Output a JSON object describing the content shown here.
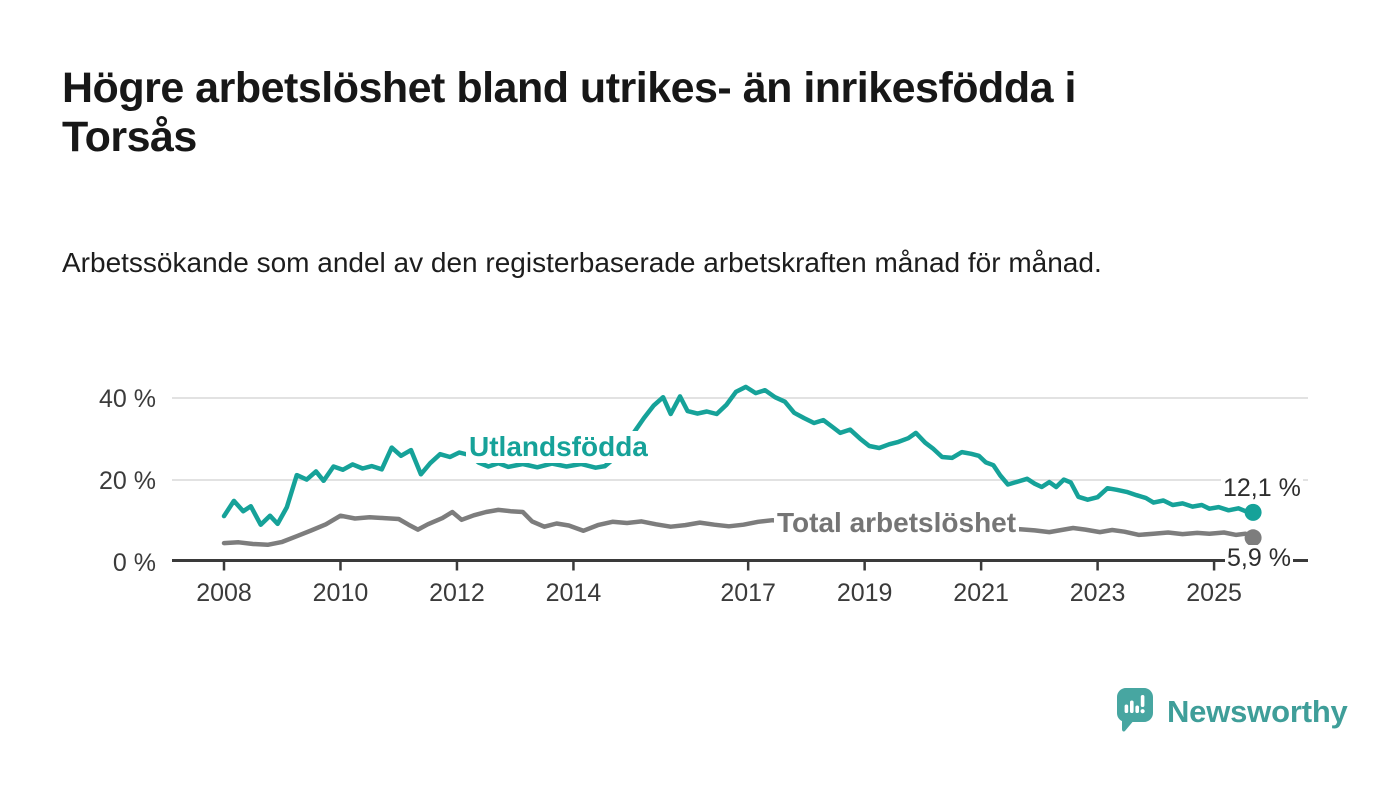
{
  "header": {
    "title_line1": "Högre arbetslöshet bland utrikes- än inrikesfödda i",
    "title_line2": "Torsås",
    "subtitle": "Arbetssökande som andel av den registerbaserade arbetskraften månad för månad."
  },
  "footer": {
    "brand": "Newsworthy"
  },
  "colors": {
    "accent_teal": "#16a299",
    "line_gray": "#7d7d7d",
    "axis_text": "#3b3b3b",
    "gridline": "#d9d9d9",
    "axis_line": "#3a3a3a",
    "logo_teal": "#47a6a1",
    "logo_text_teal": "#3f9e99"
  },
  "chart_data": {
    "type": "line",
    "title": "",
    "xlabel": "",
    "ylabel": "",
    "grid": "horizontal",
    "legend": "inline-labels",
    "xlim": [
      2007.1,
      2026.6
    ],
    "ylim": [
      0,
      44
    ],
    "y_ticks": [
      0,
      20,
      40
    ],
    "y_tick_suffix": " %",
    "x_ticks": [
      2008,
      2010,
      2012,
      2014,
      2017,
      2019,
      2021,
      2023,
      2025
    ],
    "series": [
      {
        "id": "utlandsfodda",
        "name": "Utlandsfödda",
        "color": "#16a299",
        "end_label": "12,1 %",
        "end_value": 12.1,
        "points": [
          [
            2008.0,
            11.2
          ],
          [
            2008.17,
            14.9
          ],
          [
            2008.33,
            12.4
          ],
          [
            2008.46,
            13.6
          ],
          [
            2008.63,
            9.1
          ],
          [
            2008.79,
            11.3
          ],
          [
            2008.92,
            9.3
          ],
          [
            2009.08,
            13.4
          ],
          [
            2009.25,
            21.2
          ],
          [
            2009.42,
            20.1
          ],
          [
            2009.58,
            22.1
          ],
          [
            2009.71,
            19.8
          ],
          [
            2009.88,
            23.3
          ],
          [
            2010.04,
            22.5
          ],
          [
            2010.21,
            23.8
          ],
          [
            2010.38,
            22.8
          ],
          [
            2010.54,
            23.4
          ],
          [
            2010.71,
            22.6
          ],
          [
            2010.88,
            27.9
          ],
          [
            2011.04,
            25.9
          ],
          [
            2011.21,
            27.3
          ],
          [
            2011.38,
            21.4
          ],
          [
            2011.54,
            24.1
          ],
          [
            2011.71,
            26.3
          ],
          [
            2011.88,
            25.6
          ],
          [
            2012.04,
            26.7
          ],
          [
            2012.21,
            26.1
          ],
          [
            2012.38,
            24.2
          ],
          [
            2012.54,
            23.3
          ],
          [
            2012.71,
            24.1
          ],
          [
            2012.88,
            23.2
          ],
          [
            2013.13,
            23.9
          ],
          [
            2013.38,
            23.1
          ],
          [
            2013.63,
            24.0
          ],
          [
            2013.88,
            23.3
          ],
          [
            2014.13,
            23.9
          ],
          [
            2014.38,
            23.0
          ],
          [
            2014.54,
            23.4
          ],
          [
            2014.71,
            25.4
          ],
          [
            2014.88,
            28.4
          ],
          [
            2015.04,
            31.6
          ],
          [
            2015.21,
            35.1
          ],
          [
            2015.38,
            38.2
          ],
          [
            2015.54,
            40.2
          ],
          [
            2015.67,
            36.1
          ],
          [
            2015.83,
            40.4
          ],
          [
            2015.96,
            36.8
          ],
          [
            2016.13,
            36.2
          ],
          [
            2016.29,
            36.7
          ],
          [
            2016.46,
            36.1
          ],
          [
            2016.63,
            38.4
          ],
          [
            2016.79,
            41.5
          ],
          [
            2016.96,
            42.7
          ],
          [
            2017.13,
            41.2
          ],
          [
            2017.29,
            41.9
          ],
          [
            2017.46,
            40.2
          ],
          [
            2017.63,
            39.1
          ],
          [
            2017.79,
            36.4
          ],
          [
            2017.96,
            35.1
          ],
          [
            2018.13,
            33.9
          ],
          [
            2018.29,
            34.6
          ],
          [
            2018.46,
            32.8
          ],
          [
            2018.58,
            31.5
          ],
          [
            2018.75,
            32.3
          ],
          [
            2018.92,
            30.1
          ],
          [
            2019.08,
            28.3
          ],
          [
            2019.25,
            27.8
          ],
          [
            2019.42,
            28.7
          ],
          [
            2019.58,
            29.3
          ],
          [
            2019.75,
            30.2
          ],
          [
            2019.88,
            31.5
          ],
          [
            2020.04,
            29.1
          ],
          [
            2020.17,
            27.7
          ],
          [
            2020.33,
            25.6
          ],
          [
            2020.5,
            25.4
          ],
          [
            2020.67,
            26.8
          ],
          [
            2020.83,
            26.4
          ],
          [
            2020.96,
            25.9
          ],
          [
            2021.08,
            24.3
          ],
          [
            2021.21,
            23.6
          ],
          [
            2021.33,
            21.1
          ],
          [
            2021.46,
            18.9
          ],
          [
            2021.63,
            19.6
          ],
          [
            2021.79,
            20.3
          ],
          [
            2021.92,
            19.1
          ],
          [
            2022.04,
            18.3
          ],
          [
            2022.17,
            19.5
          ],
          [
            2022.29,
            18.3
          ],
          [
            2022.42,
            20.1
          ],
          [
            2022.54,
            19.4
          ],
          [
            2022.67,
            15.9
          ],
          [
            2022.83,
            15.2
          ],
          [
            2023.0,
            15.8
          ],
          [
            2023.17,
            18.0
          ],
          [
            2023.33,
            17.6
          ],
          [
            2023.5,
            17.1
          ],
          [
            2023.67,
            16.3
          ],
          [
            2023.83,
            15.6
          ],
          [
            2023.96,
            14.5
          ],
          [
            2024.13,
            15.0
          ],
          [
            2024.29,
            13.9
          ],
          [
            2024.46,
            14.3
          ],
          [
            2024.63,
            13.5
          ],
          [
            2024.79,
            13.9
          ],
          [
            2024.92,
            13.0
          ],
          [
            2025.08,
            13.4
          ],
          [
            2025.25,
            12.6
          ],
          [
            2025.42,
            13.1
          ],
          [
            2025.54,
            12.4
          ],
          [
            2025.67,
            12.1
          ]
        ]
      },
      {
        "id": "total-arbetsloshet",
        "name": "Total arbetslöshet",
        "color": "#7d7d7d",
        "end_label": "5,9 %",
        "end_value": 5.9,
        "points": [
          [
            2008.0,
            4.6
          ],
          [
            2008.25,
            4.8
          ],
          [
            2008.5,
            4.4
          ],
          [
            2008.75,
            4.2
          ],
          [
            2009.0,
            4.9
          ],
          [
            2009.25,
            6.3
          ],
          [
            2009.5,
            7.7
          ],
          [
            2009.75,
            9.2
          ],
          [
            2010.0,
            11.3
          ],
          [
            2010.25,
            10.6
          ],
          [
            2010.5,
            10.9
          ],
          [
            2010.75,
            10.7
          ],
          [
            2011.0,
            10.5
          ],
          [
            2011.17,
            9.1
          ],
          [
            2011.33,
            7.9
          ],
          [
            2011.5,
            9.2
          ],
          [
            2011.75,
            10.7
          ],
          [
            2011.92,
            12.2
          ],
          [
            2012.08,
            10.3
          ],
          [
            2012.29,
            11.4
          ],
          [
            2012.5,
            12.2
          ],
          [
            2012.71,
            12.7
          ],
          [
            2012.92,
            12.4
          ],
          [
            2013.13,
            12.2
          ],
          [
            2013.29,
            9.9
          ],
          [
            2013.5,
            8.6
          ],
          [
            2013.71,
            9.4
          ],
          [
            2013.92,
            8.9
          ],
          [
            2014.17,
            7.6
          ],
          [
            2014.42,
            9.0
          ],
          [
            2014.67,
            9.8
          ],
          [
            2014.92,
            9.5
          ],
          [
            2015.17,
            9.9
          ],
          [
            2015.42,
            9.2
          ],
          [
            2015.67,
            8.6
          ],
          [
            2015.92,
            9.0
          ],
          [
            2016.17,
            9.6
          ],
          [
            2016.42,
            9.1
          ],
          [
            2016.67,
            8.7
          ],
          [
            2016.92,
            9.1
          ],
          [
            2017.17,
            9.8
          ],
          [
            2017.42,
            10.2
          ],
          [
            2017.67,
            9.9
          ],
          [
            2017.92,
            9.4
          ],
          [
            2018.17,
            9.7
          ],
          [
            2018.42,
            9.1
          ],
          [
            2018.67,
            8.8
          ],
          [
            2018.92,
            8.5
          ],
          [
            2019.17,
            8.3
          ],
          [
            2019.42,
            8.6
          ],
          [
            2019.67,
            8.9
          ],
          [
            2019.92,
            8.7
          ],
          [
            2020.17,
            9.5
          ],
          [
            2020.42,
            9.8
          ],
          [
            2020.67,
            9.3
          ],
          [
            2020.92,
            8.9
          ],
          [
            2021.17,
            8.6
          ],
          [
            2021.42,
            8.3
          ],
          [
            2021.67,
            8.0
          ],
          [
            2021.92,
            7.7
          ],
          [
            2022.17,
            7.3
          ],
          [
            2022.38,
            7.8
          ],
          [
            2022.58,
            8.3
          ],
          [
            2022.79,
            7.9
          ],
          [
            2023.04,
            7.3
          ],
          [
            2023.25,
            7.8
          ],
          [
            2023.46,
            7.4
          ],
          [
            2023.71,
            6.6
          ],
          [
            2023.96,
            6.9
          ],
          [
            2024.21,
            7.2
          ],
          [
            2024.46,
            6.8
          ],
          [
            2024.71,
            7.1
          ],
          [
            2024.92,
            6.9
          ],
          [
            2025.17,
            7.2
          ],
          [
            2025.38,
            6.6
          ],
          [
            2025.54,
            6.9
          ],
          [
            2025.67,
            5.9
          ]
        ]
      }
    ]
  }
}
